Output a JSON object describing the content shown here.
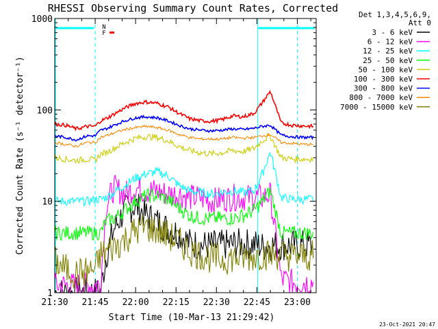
{
  "chart_data": {
    "type": "line",
    "title": "RHESSI Observing Summary Count Rates, Corrected",
    "xlabel": "Start Time (10-Mar-13 21:29:42)",
    "ylabel": "Corrected Count Rate (s⁻¹ detector⁻¹)",
    "yscale": "log",
    "ylim": [
      1,
      1000
    ],
    "xlim_minutes_after_start": [
      0,
      97
    ],
    "x_ticks": [
      {
        "label": "21:30",
        "minute": 0
      },
      {
        "label": "21:45",
        "minute": 15
      },
      {
        "label": "22:00",
        "minute": 30
      },
      {
        "label": "22:15",
        "minute": 45
      },
      {
        "label": "22:30",
        "minute": 60
      },
      {
        "label": "22:45",
        "minute": 75
      },
      {
        "label": "23:00",
        "minute": 90
      }
    ],
    "y_ticks": [
      {
        "label": "1",
        "value": 1
      },
      {
        "label": "10",
        "value": 10
      },
      {
        "label": "100",
        "value": 100
      },
      {
        "label": "1000",
        "value": 1000
      }
    ],
    "legend_header": [
      "Det 1,3,4,5,6,9,",
      "Att 0"
    ],
    "legend_position": "right",
    "flags": [
      {
        "label": "N",
        "color": "#00ffff"
      },
      {
        "label": "F",
        "color": "#ff0000"
      }
    ],
    "series": [
      {
        "name": "3 - 6 keV",
        "color": "#000000",
        "x": [
          0,
          4,
          8,
          12,
          15,
          17,
          19,
          22,
          26,
          30,
          34,
          38,
          42,
          46,
          50,
          54,
          58,
          62,
          66,
          70,
          74,
          77,
          80,
          84,
          88,
          92,
          96
        ],
        "y": [
          1,
          1,
          1,
          1,
          1,
          1,
          2.5,
          5,
          8,
          9,
          7,
          6,
          5,
          4.5,
          3.5,
          3.3,
          3.3,
          3.3,
          3.4,
          3.4,
          3.4,
          3.2,
          3.3,
          3.3,
          3.3,
          3.3,
          3.3
        ]
      },
      {
        "name": "6 - 12 keV",
        "color": "#ff00ff",
        "x": [
          0,
          4,
          8,
          12,
          15,
          17,
          19,
          22,
          26,
          30,
          34,
          38,
          42,
          46,
          50,
          54,
          58,
          62,
          66,
          70,
          74,
          77,
          80,
          84,
          88,
          92,
          96
        ],
        "y": [
          1.2,
          1.2,
          1.2,
          1.2,
          1.2,
          1.2,
          9,
          14,
          12,
          14,
          13,
          13,
          12,
          12,
          11,
          11,
          10,
          10.5,
          11,
          11,
          11,
          11,
          12,
          1.4,
          1.3,
          1.3,
          1.3
        ]
      },
      {
        "name": "12 - 25 keV",
        "color": "#00ffff",
        "x": [
          0,
          4,
          8,
          12,
          15,
          17,
          19,
          22,
          26,
          30,
          34,
          38,
          42,
          46,
          50,
          54,
          58,
          62,
          66,
          70,
          74,
          77,
          80,
          84,
          88,
          92,
          96
        ],
        "y": [
          10,
          10,
          10,
          10,
          10.5,
          10.5,
          11,
          12.5,
          15,
          18,
          20,
          21,
          19,
          15,
          13,
          12.5,
          12,
          12.5,
          13,
          12.5,
          13,
          20,
          35,
          11,
          10.5,
          10.5,
          10.5
        ]
      },
      {
        "name": "25 - 50 keV",
        "color": "#00ff00",
        "x": [
          0,
          4,
          8,
          12,
          15,
          17,
          19,
          22,
          26,
          30,
          34,
          38,
          42,
          46,
          50,
          54,
          58,
          62,
          66,
          70,
          74,
          77,
          80,
          84,
          88,
          92,
          96
        ],
        "y": [
          4.5,
          4.5,
          4.5,
          4.5,
          4.5,
          4.5,
          6,
          6.5,
          8,
          10,
          11.5,
          11.5,
          10.5,
          8.5,
          7,
          6.5,
          6.5,
          6.5,
          6.5,
          7,
          8,
          10,
          13,
          4.5,
          4.5,
          4.5,
          4.5
        ]
      },
      {
        "name": "50 - 100 keV",
        "color": "#cccc00",
        "x": [
          0,
          4,
          8,
          12,
          15,
          17,
          19,
          22,
          26,
          30,
          34,
          38,
          42,
          46,
          50,
          54,
          58,
          62,
          66,
          70,
          74,
          77,
          80,
          84,
          88,
          92,
          96
        ],
        "y": [
          30,
          29,
          28,
          29,
          28,
          33,
          34,
          38,
          44,
          49,
          51,
          50,
          46,
          40,
          36,
          34,
          33,
          34,
          36,
          35,
          38,
          46,
          52,
          30,
          29,
          29,
          29
        ]
      },
      {
        "name": "100 - 300 keV",
        "color": "#ff0000",
        "x": [
          0,
          4,
          8,
          12,
          15,
          17,
          19,
          22,
          26,
          30,
          34,
          38,
          42,
          46,
          50,
          54,
          58,
          62,
          66,
          70,
          74,
          77,
          80,
          84,
          88,
          92,
          96
        ],
        "y": [
          70,
          68,
          62,
          66,
          66,
          76,
          80,
          90,
          105,
          118,
          122,
          118,
          108,
          92,
          80,
          76,
          75,
          78,
          86,
          84,
          92,
          120,
          160,
          72,
          68,
          67,
          66
        ]
      },
      {
        "name": "300 - 800 keV",
        "color": "#0000ff",
        "x": [
          0,
          4,
          8,
          12,
          15,
          17,
          19,
          22,
          26,
          30,
          34,
          38,
          42,
          46,
          50,
          54,
          58,
          62,
          66,
          70,
          74,
          77,
          80,
          84,
          88,
          92,
          96
        ],
        "y": [
          52,
          50,
          47,
          52,
          52,
          60,
          62,
          68,
          76,
          82,
          84,
          82,
          76,
          68,
          62,
          60,
          59,
          60,
          62,
          61,
          63,
          66,
          68,
          53,
          51,
          50,
          50
        ]
      },
      {
        "name": "800 - 7000 keV",
        "color": "#ff8800",
        "x": [
          0,
          4,
          8,
          12,
          15,
          17,
          19,
          22,
          26,
          30,
          34,
          38,
          42,
          46,
          50,
          54,
          58,
          62,
          66,
          70,
          74,
          77,
          80,
          84,
          88,
          92,
          96
        ],
        "y": [
          44,
          42,
          40,
          44,
          44,
          50,
          52,
          56,
          61,
          64,
          66,
          64,
          60,
          54,
          50,
          48,
          48,
          48,
          50,
          49,
          50,
          52,
          54,
          44,
          43,
          42,
          42
        ]
      },
      {
        "name": "7000 - 15000 keV",
        "color": "#808000",
        "x": [
          0,
          4,
          8,
          12,
          15,
          17,
          19,
          22,
          26,
          30,
          34,
          38,
          42,
          46,
          50,
          54,
          58,
          62,
          66,
          70,
          74,
          77,
          80,
          84,
          88,
          92,
          96
        ],
        "y": [
          2.2,
          1.8,
          1.6,
          1.7,
          1.8,
          2.6,
          2.8,
          3.2,
          3.8,
          4.8,
          5.2,
          4.8,
          4.2,
          3.6,
          2.9,
          2.6,
          2.4,
          2.3,
          2.4,
          2.4,
          2.5,
          2.6,
          2.6,
          2.6,
          2.5,
          2.5,
          2.5
        ]
      }
    ],
    "attenuator_lines_minute": [
      0,
      75
    ],
    "segment_lines_minute": [
      15,
      90
    ]
  },
  "footer_timestamp": "23-Oct-2021 20:47"
}
